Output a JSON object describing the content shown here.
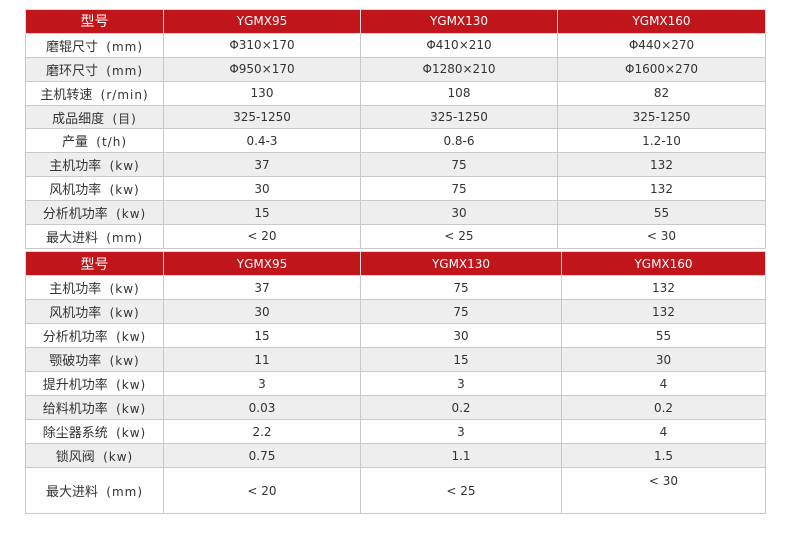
{
  "table1": {
    "header": {
      "label": "型号",
      "models": [
        "YGMX95",
        "YGMX130",
        "YGMX160"
      ]
    },
    "rows": [
      {
        "label": "磨辊尺寸",
        "unit": "(mm)",
        "values": [
          "Φ310×170",
          "Φ410×210",
          "Φ440×270"
        ]
      },
      {
        "label": "磨环尺寸",
        "unit": "(mm)",
        "values": [
          "Φ950×170",
          "Φ1280×210",
          "Φ1600×270"
        ]
      },
      {
        "label": "主机转速",
        "unit": "(r/min)",
        "values": [
          "130",
          "108",
          "82"
        ]
      },
      {
        "label": "成品细度",
        "unit": "(目)",
        "values": [
          "325-1250",
          "325-1250",
          "325-1250"
        ]
      },
      {
        "label": "产量",
        "unit": "(t/h)",
        "values": [
          "0.4-3",
          "0.8-6",
          "1.2-10"
        ]
      },
      {
        "label": "主机功率",
        "unit": "(kw)",
        "values": [
          "37",
          "75",
          "132"
        ]
      },
      {
        "label": "风机功率",
        "unit": "(kw)",
        "values": [
          "30",
          "75",
          "132"
        ]
      },
      {
        "label": "分析机功率",
        "unit": "(kw)",
        "values": [
          "15",
          "30",
          "55"
        ]
      },
      {
        "label": "最大进料",
        "unit": "(mm)",
        "values": [
          "< 20",
          "< 25",
          "< 30"
        ]
      }
    ]
  },
  "table2": {
    "header": {
      "label": "型号",
      "models": [
        "YGMX95",
        "YGMX130",
        "YGMX160"
      ]
    },
    "rows": [
      {
        "label": "主机功率",
        "unit": "(kw)",
        "values": [
          "37",
          "75",
          "132"
        ]
      },
      {
        "label": "风机功率",
        "unit": "(kw)",
        "values": [
          "30",
          "75",
          "132"
        ]
      },
      {
        "label": "分析机功率",
        "unit": "(kw)",
        "values": [
          "15",
          "30",
          "55"
        ]
      },
      {
        "label": "颚破功率",
        "unit": "(kw)",
        "values": [
          "11",
          "15",
          "30"
        ]
      },
      {
        "label": "提升机功率",
        "unit": "(kw)",
        "values": [
          "3",
          "3",
          "4"
        ]
      },
      {
        "label": "给料机功率",
        "unit": "(kw)",
        "values": [
          "0.03",
          "0.2",
          "0.2"
        ]
      },
      {
        "label": "除尘器系统",
        "unit": "(kw)",
        "values": [
          "2.2",
          "3",
          "4"
        ]
      },
      {
        "label": "锁风阀",
        "unit": "(kw)",
        "values": [
          "0.75",
          "1.1",
          "1.5"
        ]
      },
      {
        "label": "最大进料",
        "unit": "(mm)",
        "values": [
          "< 20",
          "< 25",
          "< 30"
        ]
      }
    ]
  },
  "colors": {
    "header_bg": "#c0161b",
    "header_text": "#ffffff",
    "alt_row_bg": "#eeeeee",
    "border": "#c9c9c9"
  }
}
